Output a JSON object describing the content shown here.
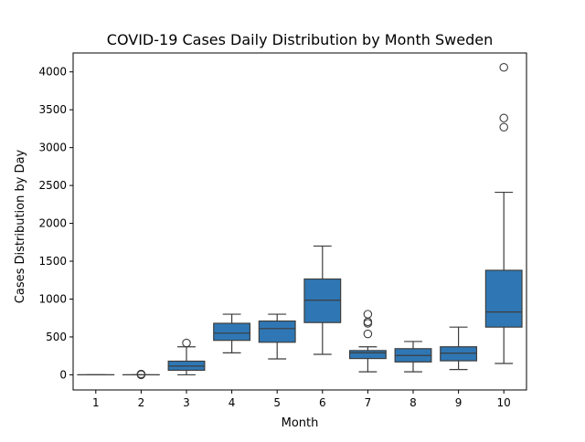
{
  "chart_data": {
    "type": "box",
    "title": "COVID-19 Cases Daily Distribution by Month Sweden",
    "xlabel": "Month",
    "ylabel": "Cases Distribution by Day",
    "categories": [
      "1",
      "2",
      "3",
      "4",
      "5",
      "6",
      "7",
      "8",
      "9",
      "10"
    ],
    "ylim": [
      -200,
      4250
    ],
    "yticks": [
      0,
      500,
      1000,
      1500,
      2000,
      2500,
      3000,
      3500,
      4000
    ],
    "grid": false,
    "box_color": "#2f77b4",
    "line_color": "#3d3d3d",
    "boxes": [
      {
        "category": "1",
        "whisker_low": 0,
        "q1": 0,
        "median": 0,
        "q3": 0,
        "whisker_high": 0,
        "outliers": []
      },
      {
        "category": "2",
        "whisker_low": 0,
        "q1": 0,
        "median": 0,
        "q3": 0,
        "whisker_high": 0,
        "outliers": [
          1,
          3,
          10
        ]
      },
      {
        "category": "3",
        "whisker_low": 0,
        "q1": 60,
        "median": 115,
        "q3": 180,
        "whisker_high": 370,
        "outliers": [
          420
        ]
      },
      {
        "category": "4",
        "whisker_low": 290,
        "q1": 455,
        "median": 550,
        "q3": 680,
        "whisker_high": 800,
        "outliers": []
      },
      {
        "category": "5",
        "whisker_low": 210,
        "q1": 430,
        "median": 610,
        "q3": 710,
        "whisker_high": 800,
        "outliers": []
      },
      {
        "category": "6",
        "whisker_low": 270,
        "q1": 690,
        "median": 985,
        "q3": 1265,
        "whisker_high": 1700,
        "outliers": []
      },
      {
        "category": "7",
        "whisker_low": 40,
        "q1": 215,
        "median": 290,
        "q3": 320,
        "whisker_high": 370,
        "outliers": [
          540,
          680,
          700,
          800
        ]
      },
      {
        "category": "8",
        "whisker_low": 40,
        "q1": 170,
        "median": 255,
        "q3": 345,
        "whisker_high": 440,
        "outliers": []
      },
      {
        "category": "9",
        "whisker_low": 70,
        "q1": 185,
        "median": 285,
        "q3": 370,
        "whisker_high": 630,
        "outliers": []
      },
      {
        "category": "10",
        "whisker_low": 150,
        "q1": 630,
        "median": 830,
        "q3": 1380,
        "whisker_high": 2410,
        "outliers": [
          3270,
          3390,
          4060
        ]
      }
    ]
  }
}
